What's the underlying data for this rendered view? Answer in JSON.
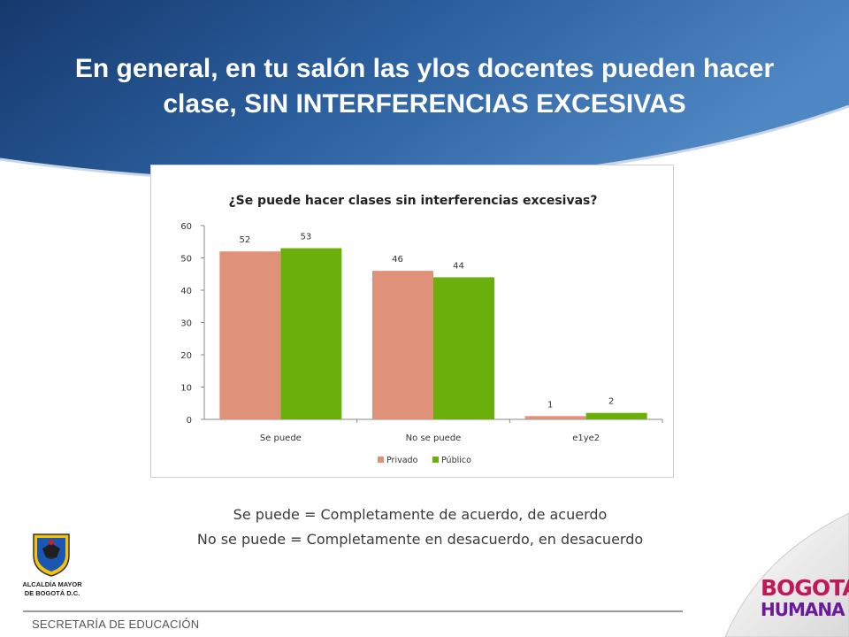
{
  "slide": {
    "title_line1": "En general, en tu salón las ylos docentes pueden hacer",
    "title_line2": "clase, SIN INTERFERENCIAS EXCESIVAS",
    "note_1": "Se puede = Completamente de acuerdo, de acuerdo",
    "note_2": "No se puede = Completamente en desacuerdo, en desacuerdo",
    "footer_text": "SECRETARÍA DE EDUCACIÓN",
    "seal_line1": "ALCALDÍA MAYOR",
    "seal_line2": "DE BOGOTÁ D.C.",
    "logo_line1": "BOGOTÁ",
    "logo_line2": "HUMANA",
    "colors": {
      "header_blue": "#1f4f8f",
      "privado": "#e0917a",
      "publico": "#6aaf0a"
    }
  },
  "chart_data": {
    "type": "bar",
    "title": "¿Se puede hacer clases sin interferencias excesivas?",
    "categories": [
      "Se puede",
      "No se puede",
      "e1ye2"
    ],
    "series": [
      {
        "name": "Privado",
        "values": [
          52,
          46,
          1
        ],
        "color": "#e0917a"
      },
      {
        "name": "Público",
        "values": [
          53,
          44,
          2
        ],
        "color": "#6aaf0a"
      }
    ],
    "ylim": [
      0,
      60
    ],
    "yticks": [
      0,
      10,
      20,
      30,
      40,
      50,
      60
    ],
    "data_labels": true,
    "grid": false,
    "legend": "bottom-center"
  }
}
